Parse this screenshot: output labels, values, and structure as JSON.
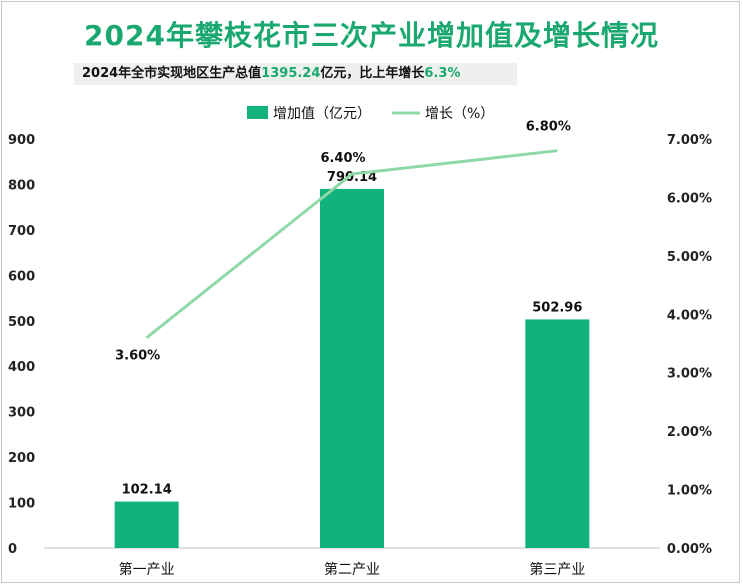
{
  "title": "2024年攀枝花市三次产业增加值及增长情况",
  "subtitle": {
    "prefix": "2024年全市实现地区生产总值",
    "gdp": "1395.24",
    "middle": "亿元，比上年增长",
    "growth": "6.3%"
  },
  "colors": {
    "bar": "#12b27e",
    "line": "#8fd9a8",
    "title": "#1aa870"
  },
  "chart_data": {
    "type": "bar",
    "categories": [
      "第一产业",
      "第二产业",
      "第三产业"
    ],
    "series": [
      {
        "name": "增加值（亿元）",
        "type": "bar",
        "axis": "left",
        "values": [
          102.14,
          790.14,
          502.96
        ],
        "labels": [
          "102.14",
          "790.14",
          "502.96"
        ]
      },
      {
        "name": "增长（%）",
        "type": "line",
        "axis": "right",
        "values": [
          3.6,
          6.4,
          6.8
        ],
        "labels": [
          "3.60%",
          "6.40%",
          "6.80%"
        ]
      }
    ],
    "left_axis": {
      "ylim": [
        0,
        900
      ],
      "ticks": [
        "0",
        "100",
        "200",
        "300",
        "400",
        "500",
        "600",
        "700",
        "800",
        "900"
      ]
    },
    "right_axis": {
      "ylim": [
        0,
        7
      ],
      "ticks": [
        "0.00%",
        "1.00%",
        "2.00%",
        "3.00%",
        "4.00%",
        "5.00%",
        "6.00%",
        "7.00%"
      ]
    },
    "legend_position": "top-center",
    "grid": false
  }
}
